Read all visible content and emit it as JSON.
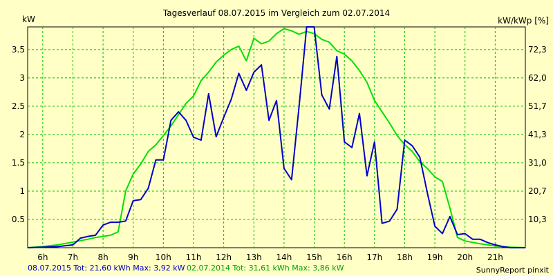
{
  "colors": {
    "background": "#ffffc6",
    "grid": "#00c000",
    "series_2015": "#0000c8",
    "series_2014": "#00e000",
    "footer_2015": "#0000c0",
    "footer_2014": "#00a000"
  },
  "chart_data": {
    "type": "line",
    "title": "Tagesverlauf 08.07.2015 im Vergleich zum 02.07.2014",
    "ylabel_left": "kW",
    "ylabel_right": "kW/kWp [%]",
    "xlim": [
      5.5,
      22.0
    ],
    "ylim": [
      0,
      3.9
    ],
    "grid": true,
    "x_ticks": [
      6,
      7,
      8,
      9,
      10,
      11,
      12,
      13,
      14,
      15,
      16,
      17,
      18,
      19,
      20,
      21
    ],
    "x_tick_labels": [
      "6h",
      "7h",
      "8h",
      "9h",
      "10h",
      "11h",
      "12h",
      "13h",
      "14h",
      "15h",
      "16h",
      "17h",
      "18h",
      "19h",
      "20h",
      "21h"
    ],
    "y_ticks": [
      0.5,
      1,
      1.5,
      2,
      2.5,
      3,
      3.5
    ],
    "y_tick_labels": [
      "0.5",
      "1",
      "1.5",
      "2",
      "2.5",
      "3",
      "3.5"
    ],
    "y_right_tick_labels": [
      "10,3",
      "20,7",
      "31,0",
      "41,3",
      "51,7",
      "62,0",
      "72,3"
    ],
    "series": [
      {
        "name": "08.07.2015",
        "x": [
          5.5,
          6.5,
          7.0,
          7.25,
          7.5,
          7.75,
          8.0,
          8.25,
          8.5,
          8.75,
          9.0,
          9.25,
          9.5,
          9.75,
          10.0,
          10.25,
          10.5,
          10.75,
          11.0,
          11.25,
          11.5,
          11.75,
          12.0,
          12.25,
          12.5,
          12.75,
          13.0,
          13.25,
          13.5,
          13.75,
          14.0,
          14.25,
          14.5,
          14.75,
          15.0,
          15.25,
          15.5,
          15.75,
          16.0,
          16.25,
          16.5,
          16.75,
          17.0,
          17.25,
          17.5,
          17.75,
          18.0,
          18.25,
          18.5,
          18.75,
          19.0,
          19.25,
          19.5,
          19.75,
          20.0,
          20.25,
          20.5,
          20.75,
          21.0,
          21.25,
          21.5,
          22.0
        ],
        "y": [
          0,
          0.02,
          0.05,
          0.17,
          0.2,
          0.22,
          0.4,
          0.45,
          0.45,
          0.47,
          0.83,
          0.85,
          1.05,
          1.55,
          1.55,
          2.25,
          2.4,
          2.25,
          1.95,
          1.9,
          2.72,
          1.96,
          2.3,
          2.62,
          3.08,
          2.78,
          3.1,
          3.23,
          2.25,
          2.6,
          1.4,
          1.2,
          2.5,
          3.9,
          3.9,
          2.7,
          2.45,
          3.38,
          1.87,
          1.77,
          2.37,
          1.27,
          1.87,
          0.43,
          0.47,
          0.68,
          1.9,
          1.8,
          1.6,
          0.97,
          0.38,
          0.25,
          0.55,
          0.23,
          0.25,
          0.15,
          0.15,
          0.09,
          0.05,
          0.02,
          0,
          0
        ]
      },
      {
        "name": "02.07.2014",
        "x": [
          5.5,
          6.0,
          6.5,
          7.0,
          7.5,
          7.75,
          8.0,
          8.25,
          8.5,
          8.75,
          9.0,
          9.25,
          9.5,
          9.75,
          10.0,
          10.25,
          10.5,
          10.75,
          11.0,
          11.25,
          11.5,
          11.75,
          12.0,
          12.25,
          12.5,
          12.75,
          13.0,
          13.25,
          13.5,
          13.75,
          14.0,
          14.25,
          14.5,
          14.75,
          15.0,
          15.25,
          15.5,
          15.75,
          16.0,
          16.25,
          16.5,
          16.75,
          17.0,
          17.25,
          17.5,
          17.75,
          18.0,
          18.25,
          18.5,
          18.75,
          19.0,
          19.25,
          19.5,
          19.75,
          20.0,
          20.5,
          21.0,
          21.5,
          22.0
        ],
        "y": [
          0,
          0.02,
          0.05,
          0.1,
          0.15,
          0.18,
          0.2,
          0.22,
          0.28,
          1.0,
          1.3,
          1.48,
          1.7,
          1.82,
          1.98,
          2.15,
          2.35,
          2.55,
          2.68,
          2.95,
          3.1,
          3.28,
          3.4,
          3.5,
          3.56,
          3.3,
          3.7,
          3.6,
          3.65,
          3.78,
          3.87,
          3.83,
          3.77,
          3.82,
          3.78,
          3.68,
          3.63,
          3.48,
          3.42,
          3.3,
          3.13,
          2.92,
          2.6,
          2.4,
          2.2,
          1.98,
          1.82,
          1.7,
          1.52,
          1.4,
          1.25,
          1.17,
          0.7,
          0.18,
          0.12,
          0.07,
          0.03,
          0.01,
          0
        ]
      }
    ]
  },
  "footer": {
    "s2015": "08.07.2015 Tot: 21,60 kWh Max: 3,92 kW",
    "s2014": "02.07.2014 Tot: 31,61 kWh Max: 3,86 kW",
    "brand": "SunnyReport pinxit"
  }
}
